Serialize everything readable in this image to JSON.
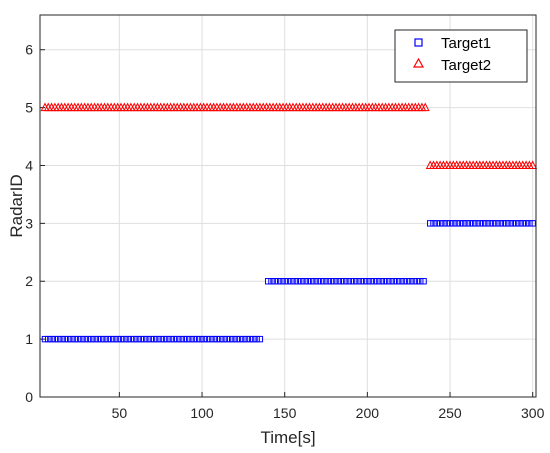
{
  "chart_data": {
    "type": "scatter",
    "title": "",
    "xlabel": "Time[s]",
    "ylabel": "RadarID",
    "xlim": [
      2,
      302
    ],
    "ylim": [
      0,
      6.6
    ],
    "xticks": [
      50,
      100,
      150,
      200,
      250,
      300
    ],
    "yticks": [
      0,
      1,
      2,
      3,
      4,
      5,
      6
    ],
    "grid": true,
    "legend_position": "top-right",
    "series": [
      {
        "name": "Target1",
        "marker": "square",
        "color": "#0000ff",
        "segments": [
          {
            "y": 1,
            "x_start": 5,
            "x_end": 135
          },
          {
            "y": 2,
            "x_start": 140,
            "x_end": 235
          },
          {
            "y": 3,
            "x_start": 238,
            "x_end": 300
          }
        ],
        "x_step": 2
      },
      {
        "name": "Target2",
        "marker": "triangle",
        "color": "#ff0000",
        "segments": [
          {
            "y": 5,
            "x_start": 5,
            "x_end": 235
          },
          {
            "y": 4,
            "x_start": 238,
            "x_end": 300
          }
        ],
        "x_step": 2
      }
    ]
  }
}
